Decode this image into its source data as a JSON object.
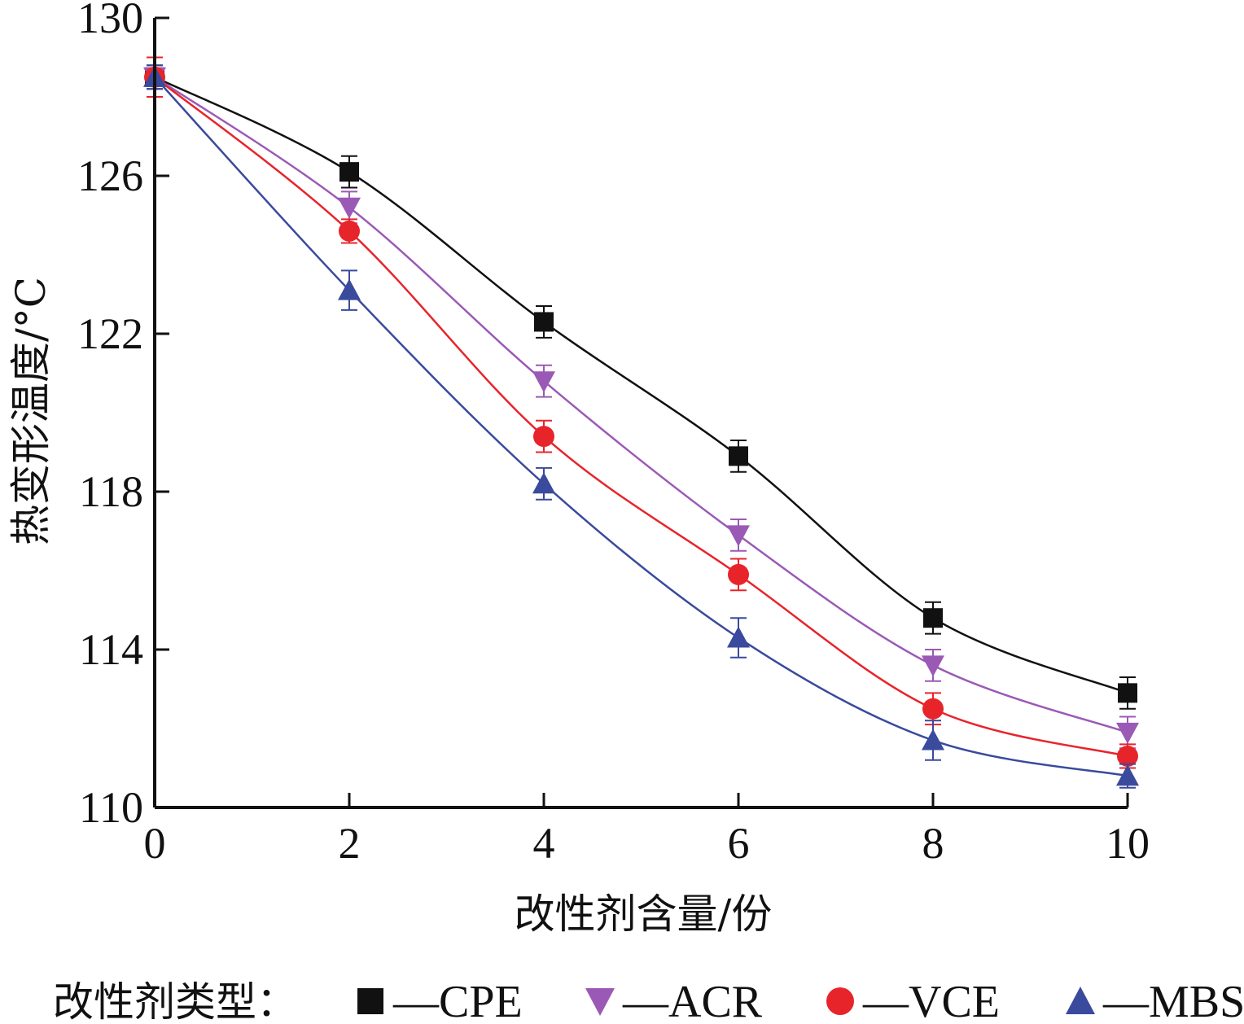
{
  "chart_data": {
    "type": "line",
    "xlabel": "改性剂含量/份",
    "ylabel": "热变形温度/°C",
    "xlim": [
      0,
      10
    ],
    "ylim": [
      110,
      130
    ],
    "x_ticks": [
      "0",
      "2",
      "4",
      "6",
      "8",
      "10"
    ],
    "y_ticks": [
      "110",
      "114",
      "118",
      "122",
      "126",
      "130"
    ],
    "legend_prefix": "改性剂类型：",
    "legend_placement": "bottom",
    "x": [
      0,
      2,
      4,
      6,
      8,
      10
    ],
    "series": [
      {
        "name": "—CPE",
        "marker": "square",
        "color": "#111111",
        "values": [
          128.5,
          126.1,
          122.3,
          118.9,
          114.8,
          112.9
        ],
        "errors": [
          0.3,
          0.4,
          0.4,
          0.4,
          0.4,
          0.4
        ]
      },
      {
        "name": "—ACR",
        "marker": "triangle-down",
        "color": "#9b59b6",
        "values": [
          128.5,
          125.2,
          120.8,
          116.9,
          113.6,
          111.9
        ],
        "errors": [
          0.3,
          0.4,
          0.4,
          0.4,
          0.4,
          0.4
        ]
      },
      {
        "name": "—VCE",
        "marker": "circle",
        "color": "#e8242b",
        "values": [
          128.5,
          124.6,
          119.4,
          115.9,
          112.5,
          111.3
        ],
        "errors": [
          0.5,
          0.3,
          0.4,
          0.4,
          0.4,
          0.3
        ]
      },
      {
        "name": "—MBS",
        "marker": "triangle-up",
        "color": "#3a4a9c",
        "values": [
          128.5,
          123.1,
          118.2,
          114.3,
          111.7,
          110.8
        ],
        "errors": [
          0.3,
          0.5,
          0.4,
          0.5,
          0.5,
          0.3
        ]
      }
    ]
  }
}
